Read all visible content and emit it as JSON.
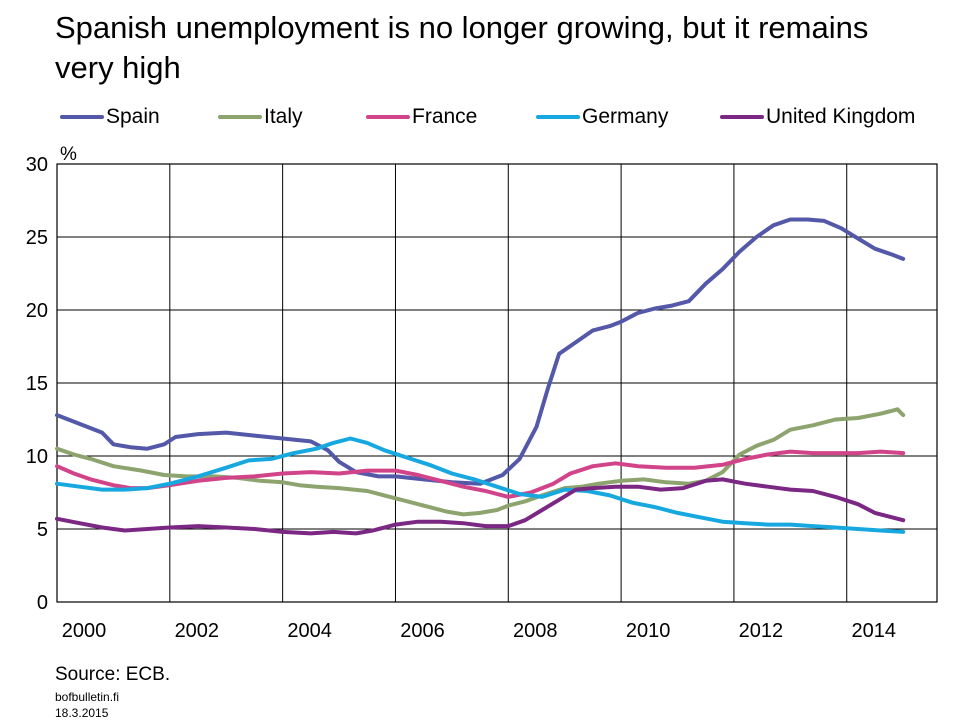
{
  "title": "Spanish unemployment is no longer growing, but it remains very high",
  "source": "Source: ECB.",
  "site": "bofbulletin.fi",
  "date": "18.3.2015",
  "chart_data": {
    "type": "line",
    "unit_label": "%",
    "xlim": [
      2000,
      2015.6
    ],
    "ylim": [
      0,
      30
    ],
    "x_ticks": [
      2000,
      2002,
      2004,
      2006,
      2008,
      2010,
      2012,
      2014
    ],
    "y_ticks": [
      0,
      5,
      10,
      15,
      20,
      25,
      30
    ],
    "grid": true,
    "legend_position": "top",
    "series": [
      {
        "name": "Spain",
        "color": "#5358a8",
        "points": [
          [
            2000,
            12.8
          ],
          [
            2000.4,
            12.2
          ],
          [
            2000.8,
            11.6
          ],
          [
            2001.0,
            10.8
          ],
          [
            2001.3,
            10.6
          ],
          [
            2001.6,
            10.5
          ],
          [
            2001.9,
            10.8
          ],
          [
            2002.1,
            11.3
          ],
          [
            2002.5,
            11.5
          ],
          [
            2003.0,
            11.6
          ],
          [
            2003.5,
            11.4
          ],
          [
            2004.0,
            11.2
          ],
          [
            2004.5,
            11.0
          ],
          [
            2004.8,
            10.4
          ],
          [
            2005.0,
            9.6
          ],
          [
            2005.3,
            8.9
          ],
          [
            2005.7,
            8.6
          ],
          [
            2006.0,
            8.6
          ],
          [
            2006.5,
            8.4
          ],
          [
            2007.0,
            8.2
          ],
          [
            2007.5,
            8.1
          ],
          [
            2007.9,
            8.7
          ],
          [
            2008.2,
            9.8
          ],
          [
            2008.5,
            12.0
          ],
          [
            2008.7,
            14.6
          ],
          [
            2008.9,
            17.0
          ],
          [
            2009.2,
            17.8
          ],
          [
            2009.5,
            18.6
          ],
          [
            2009.8,
            18.9
          ],
          [
            2010.0,
            19.2
          ],
          [
            2010.3,
            19.8
          ],
          [
            2010.6,
            20.1
          ],
          [
            2010.9,
            20.3
          ],
          [
            2011.2,
            20.6
          ],
          [
            2011.5,
            21.8
          ],
          [
            2011.8,
            22.8
          ],
          [
            2012.1,
            24.0
          ],
          [
            2012.4,
            25.0
          ],
          [
            2012.7,
            25.8
          ],
          [
            2013.0,
            26.2
          ],
          [
            2013.3,
            26.2
          ],
          [
            2013.6,
            26.1
          ],
          [
            2013.9,
            25.6
          ],
          [
            2014.2,
            24.9
          ],
          [
            2014.5,
            24.2
          ],
          [
            2014.8,
            23.8
          ],
          [
            2015.0,
            23.5
          ]
        ]
      },
      {
        "name": "Italy",
        "color": "#8da46f",
        "points": [
          [
            2000,
            10.5
          ],
          [
            2000.3,
            10.1
          ],
          [
            2000.6,
            9.8
          ],
          [
            2001.0,
            9.3
          ],
          [
            2001.5,
            9.0
          ],
          [
            2001.9,
            8.7
          ],
          [
            2002.3,
            8.6
          ],
          [
            2002.8,
            8.6
          ],
          [
            2003.2,
            8.5
          ],
          [
            2003.6,
            8.3
          ],
          [
            2004.0,
            8.2
          ],
          [
            2004.3,
            8.0
          ],
          [
            2004.6,
            7.9
          ],
          [
            2005.0,
            7.8
          ],
          [
            2005.5,
            7.6
          ],
          [
            2005.8,
            7.3
          ],
          [
            2006.0,
            7.1
          ],
          [
            2006.3,
            6.8
          ],
          [
            2006.6,
            6.5
          ],
          [
            2006.9,
            6.2
          ],
          [
            2007.2,
            6.0
          ],
          [
            2007.5,
            6.1
          ],
          [
            2007.8,
            6.3
          ],
          [
            2008.0,
            6.6
          ],
          [
            2008.3,
            6.9
          ],
          [
            2008.6,
            7.3
          ],
          [
            2009.0,
            7.8
          ],
          [
            2009.3,
            7.9
          ],
          [
            2009.6,
            8.1
          ],
          [
            2010.0,
            8.3
          ],
          [
            2010.4,
            8.4
          ],
          [
            2010.8,
            8.2
          ],
          [
            2011.2,
            8.1
          ],
          [
            2011.5,
            8.3
          ],
          [
            2011.8,
            8.9
          ],
          [
            2012.1,
            10.1
          ],
          [
            2012.4,
            10.7
          ],
          [
            2012.7,
            11.1
          ],
          [
            2013.0,
            11.8
          ],
          [
            2013.4,
            12.1
          ],
          [
            2013.8,
            12.5
          ],
          [
            2014.2,
            12.6
          ],
          [
            2014.6,
            12.9
          ],
          [
            2014.9,
            13.2
          ],
          [
            2015.0,
            12.8
          ]
        ]
      },
      {
        "name": "France",
        "color": "#d2448a",
        "points": [
          [
            2000,
            9.3
          ],
          [
            2000.3,
            8.8
          ],
          [
            2000.6,
            8.4
          ],
          [
            2001.0,
            8.0
          ],
          [
            2001.3,
            7.8
          ],
          [
            2001.6,
            7.8
          ],
          [
            2002.0,
            8.0
          ],
          [
            2002.5,
            8.3
          ],
          [
            2003.0,
            8.5
          ],
          [
            2003.5,
            8.6
          ],
          [
            2004.0,
            8.8
          ],
          [
            2004.5,
            8.9
          ],
          [
            2005.0,
            8.8
          ],
          [
            2005.5,
            9.0
          ],
          [
            2006.0,
            9.0
          ],
          [
            2006.4,
            8.7
          ],
          [
            2006.8,
            8.3
          ],
          [
            2007.2,
            7.9
          ],
          [
            2007.6,
            7.6
          ],
          [
            2008.0,
            7.2
          ],
          [
            2008.4,
            7.5
          ],
          [
            2008.8,
            8.1
          ],
          [
            2009.1,
            8.8
          ],
          [
            2009.5,
            9.3
          ],
          [
            2009.9,
            9.5
          ],
          [
            2010.3,
            9.3
          ],
          [
            2010.8,
            9.2
          ],
          [
            2011.3,
            9.2
          ],
          [
            2011.8,
            9.4
          ],
          [
            2012.2,
            9.8
          ],
          [
            2012.6,
            10.1
          ],
          [
            2013.0,
            10.3
          ],
          [
            2013.4,
            10.2
          ],
          [
            2013.8,
            10.2
          ],
          [
            2014.2,
            10.2
          ],
          [
            2014.6,
            10.3
          ],
          [
            2015.0,
            10.2
          ]
        ]
      },
      {
        "name": "Germany",
        "color": "#17a8e0",
        "points": [
          [
            2000,
            8.1
          ],
          [
            2000.4,
            7.9
          ],
          [
            2000.8,
            7.7
          ],
          [
            2001.2,
            7.7
          ],
          [
            2001.6,
            7.8
          ],
          [
            2002.0,
            8.1
          ],
          [
            2002.5,
            8.6
          ],
          [
            2003.0,
            9.2
          ],
          [
            2003.4,
            9.7
          ],
          [
            2003.8,
            9.8
          ],
          [
            2004.2,
            10.2
          ],
          [
            2004.6,
            10.5
          ],
          [
            2004.9,
            10.9
          ],
          [
            2005.2,
            11.2
          ],
          [
            2005.5,
            10.9
          ],
          [
            2005.8,
            10.4
          ],
          [
            2006.2,
            9.9
          ],
          [
            2006.6,
            9.4
          ],
          [
            2007.0,
            8.8
          ],
          [
            2007.4,
            8.4
          ],
          [
            2007.8,
            7.9
          ],
          [
            2008.2,
            7.4
          ],
          [
            2008.6,
            7.2
          ],
          [
            2009.0,
            7.7
          ],
          [
            2009.4,
            7.6
          ],
          [
            2009.8,
            7.3
          ],
          [
            2010.2,
            6.8
          ],
          [
            2010.6,
            6.5
          ],
          [
            2011.0,
            6.1
          ],
          [
            2011.4,
            5.8
          ],
          [
            2011.8,
            5.5
          ],
          [
            2012.2,
            5.4
          ],
          [
            2012.6,
            5.3
          ],
          [
            2013.0,
            5.3
          ],
          [
            2013.4,
            5.2
          ],
          [
            2013.8,
            5.1
          ],
          [
            2014.2,
            5.0
          ],
          [
            2014.6,
            4.9
          ],
          [
            2015.0,
            4.8
          ]
        ]
      },
      {
        "name": "United Kingdom",
        "color": "#7b2784",
        "points": [
          [
            2000,
            5.7
          ],
          [
            2000.4,
            5.4
          ],
          [
            2000.8,
            5.1
          ],
          [
            2001.2,
            4.9
          ],
          [
            2001.6,
            5.0
          ],
          [
            2002.0,
            5.1
          ],
          [
            2002.5,
            5.2
          ],
          [
            2003.0,
            5.1
          ],
          [
            2003.5,
            5.0
          ],
          [
            2004.0,
            4.8
          ],
          [
            2004.5,
            4.7
          ],
          [
            2004.9,
            4.8
          ],
          [
            2005.3,
            4.7
          ],
          [
            2005.6,
            4.9
          ],
          [
            2006.0,
            5.3
          ],
          [
            2006.4,
            5.5
          ],
          [
            2006.8,
            5.5
          ],
          [
            2007.2,
            5.4
          ],
          [
            2007.6,
            5.2
          ],
          [
            2008.0,
            5.2
          ],
          [
            2008.3,
            5.6
          ],
          [
            2008.6,
            6.3
          ],
          [
            2008.9,
            7.0
          ],
          [
            2009.2,
            7.7
          ],
          [
            2009.5,
            7.8
          ],
          [
            2009.9,
            7.9
          ],
          [
            2010.3,
            7.9
          ],
          [
            2010.7,
            7.7
          ],
          [
            2011.1,
            7.8
          ],
          [
            2011.5,
            8.3
          ],
          [
            2011.8,
            8.4
          ],
          [
            2012.2,
            8.1
          ],
          [
            2012.6,
            7.9
          ],
          [
            2013.0,
            7.7
          ],
          [
            2013.4,
            7.6
          ],
          [
            2013.8,
            7.2
          ],
          [
            2014.2,
            6.7
          ],
          [
            2014.5,
            6.1
          ],
          [
            2014.8,
            5.8
          ],
          [
            2015.0,
            5.6
          ]
        ]
      }
    ]
  }
}
